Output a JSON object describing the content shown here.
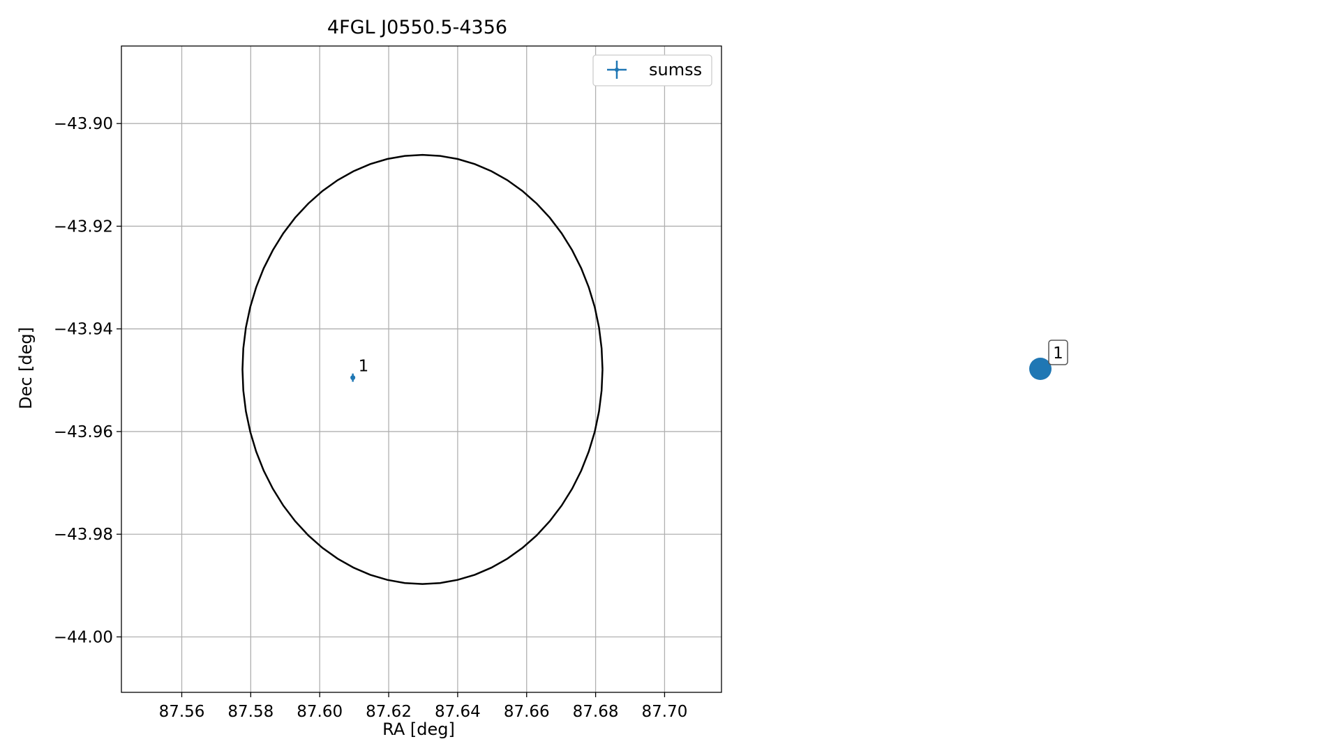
{
  "chart_data": [
    {
      "type": "scatter",
      "title": "4FGL J0550.5-4356",
      "xlabel": "RA [deg]",
      "ylabel": "Dec [deg]",
      "xlim": [
        87.5425,
        87.7165
      ],
      "ylim": [
        -44.0108,
        -43.8849
      ],
      "x_ticks": [
        {
          "value": 87.56,
          "label": "87.56"
        },
        {
          "value": 87.58,
          "label": "87.58"
        },
        {
          "value": 87.6,
          "label": "87.60"
        },
        {
          "value": 87.62,
          "label": "87.62"
        },
        {
          "value": 87.64,
          "label": "87.64"
        },
        {
          "value": 87.66,
          "label": "87.66"
        },
        {
          "value": 87.68,
          "label": "87.68"
        },
        {
          "value": 87.7,
          "label": "87.70"
        }
      ],
      "y_ticks": [
        {
          "value": -43.9,
          "label": "−43.90"
        },
        {
          "value": -43.92,
          "label": "−43.92"
        },
        {
          "value": -43.94,
          "label": "−43.94"
        },
        {
          "value": -43.96,
          "label": "−43.96"
        },
        {
          "value": -43.98,
          "label": "−43.98"
        },
        {
          "value": -44.0,
          "label": "−44.00"
        }
      ],
      "grid": true,
      "legend": {
        "placement": "upper right",
        "entries": [
          "sumss"
        ]
      },
      "ellipse": {
        "center_x": 87.6298,
        "center_y": -43.9479,
        "half_width": 0.0522,
        "half_height": 0.0418,
        "color": "#000000"
      },
      "series": [
        {
          "name": "sumss",
          "color": "#1f77b4",
          "points": [
            {
              "x": 87.6096,
              "y": -43.9495,
              "xerr": 0.0006,
              "yerr": 0.0008,
              "label": "1"
            }
          ]
        }
      ]
    },
    {
      "type": "scatter",
      "points": [
        {
          "label": "1",
          "color": "#1f77b4"
        }
      ]
    }
  ]
}
